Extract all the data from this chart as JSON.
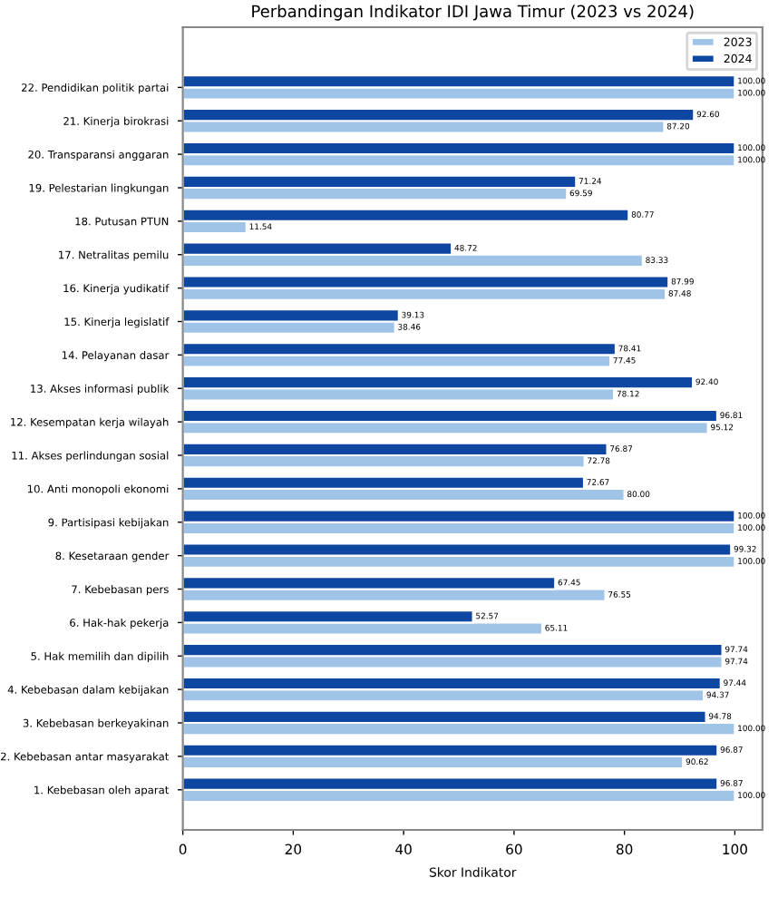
{
  "chart_data": {
    "type": "bar",
    "orientation": "horizontal",
    "title": "Perbandingan Indikator IDI Jawa Timur (2023 vs 2024)",
    "xlabel": "Skor Indikator",
    "categories": [
      "22. Pendidikan politik partai",
      "21. Kinerja birokrasi",
      "20. Transparansi anggaran",
      "19. Pelestarian lingkungan",
      "18. Putusan PTUN",
      "17. Netralitas pemilu",
      "16. Kinerja yudikatif",
      "15. Kinerja legislatif",
      "14. Pelayanan dasar",
      "13. Akses informasi publik",
      "12. Kesempatan kerja wilayah",
      "11. Akses perlindungan sosial",
      "10. Anti monopoli ekonomi",
      "9. Partisipasi kebijakan",
      "8. Kesetaraan gender",
      "7. Kebebasan pers",
      "6. Hak-hak pekerja",
      "5. Hak memilih dan dipilih",
      "4. Kebebasan dalam kebijakan",
      "3. Kebebasan berkeyakinan",
      "2. Kebebasan antar masyarakat",
      "1. Kebebasan oleh aparat"
    ],
    "series": [
      {
        "name": "2023",
        "color": "#a0c4e8",
        "values": [
          100,
          87.2,
          100,
          69.59,
          11.54,
          83.33,
          87.48,
          38.46,
          77.45,
          78.12,
          95.12,
          72.78,
          80.0,
          100,
          100,
          76.55,
          65.11,
          97.74,
          94.37,
          100,
          90.62,
          100
        ],
        "value_labels": [
          "100.00",
          "87.20",
          "100.00",
          "69.59",
          "11.54",
          "83.33",
          "87.48",
          "38.46",
          "77.45",
          "78.12",
          "95.12",
          "72.78",
          "80.00",
          "100.00",
          "100.00",
          "76.55",
          "65.11",
          "97.74",
          "94.37",
          "100.00",
          "90.62",
          "100.00"
        ]
      },
      {
        "name": "2024",
        "color": "#0d47a1",
        "values": [
          100,
          92.6,
          100,
          71.24,
          80.77,
          48.72,
          87.99,
          39.13,
          78.41,
          92.4,
          96.81,
          76.87,
          72.67,
          100,
          99.32,
          67.45,
          52.57,
          97.74,
          97.44,
          94.78,
          96.87,
          96.87
        ],
        "value_labels": [
          "100.00",
          "92.60",
          "100.00",
          "71.24",
          "80.77",
          "48.72",
          "87.99",
          "39.13",
          "78.41",
          "92.40",
          "96.81",
          "76.87",
          "72.67",
          "100.00",
          "99.32",
          "67.45",
          "52.57",
          "97.74",
          "97.44",
          "94.78",
          "96.87",
          "96.87"
        ]
      }
    ],
    "xlim": [
      0,
      105
    ],
    "xticks": [
      0,
      20,
      40,
      60,
      80,
      100
    ],
    "grid": false,
    "legend": "top right"
  }
}
